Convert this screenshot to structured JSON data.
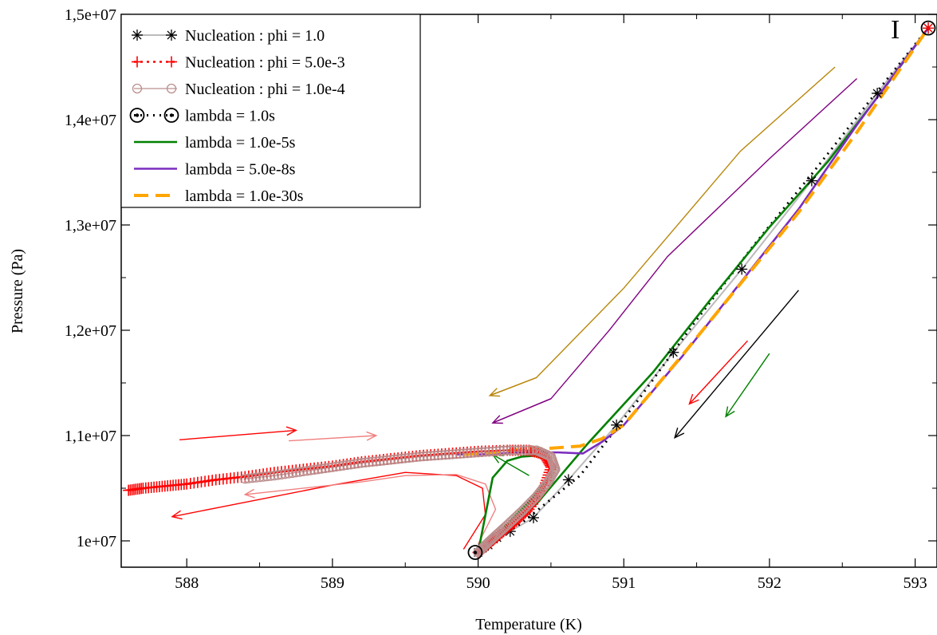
{
  "chart_data": {
    "type": "line",
    "title": "",
    "xlabel": "Temperature (K)",
    "ylabel": "Pressure (Pa)",
    "xlim": [
      587.55,
      593.15
    ],
    "ylim": [
      9750000,
      15000000
    ],
    "xticks": [
      588,
      589,
      590,
      591,
      592,
      593
    ],
    "xtick_labels": [
      "588",
      "589",
      "590",
      "591",
      "592",
      "593"
    ],
    "yticks": [
      10000000,
      11000000,
      12000000,
      13000000,
      14000000,
      15000000
    ],
    "ytick_labels": [
      "1e+07",
      "1,1e+07",
      "1,2e+07",
      "1,3e+07",
      "1,4e+07",
      "1,5e+07"
    ],
    "grid": false,
    "legend_position": "top-left",
    "point_annotation": {
      "label": "I",
      "x": 593.09,
      "y": 14870000
    },
    "series": [
      {
        "name": "Nucleation : phi = 1.0",
        "color": "#000000",
        "line_color": "#bbbbbb",
        "marker": "asterisk",
        "x": [
          590.0,
          590.03,
          590.07,
          590.13,
          590.22,
          590.38,
          590.62,
          590.95,
          591.34,
          591.81,
          592.29,
          592.74,
          593.09
        ],
        "y": [
          9890000,
          9930000,
          9960000,
          10030000,
          10090000,
          10220000,
          10580000,
          11100000,
          11790000,
          12580000,
          13420000,
          14250000,
          14870000
        ]
      },
      {
        "name": "Nucleation : phi = 5.0e-3",
        "color": "#ff0000",
        "marker": "plus",
        "x": [
          587.6,
          587.7,
          587.85,
          588.0,
          588.2,
          588.4,
          588.6,
          588.8,
          589.0,
          589.2,
          589.4,
          589.6,
          589.8,
          590.0,
          590.2,
          590.35,
          590.45,
          590.5,
          590.45,
          590.35,
          590.25,
          590.15,
          590.08,
          590.03,
          590.0
        ],
        "y": [
          10480000,
          10500000,
          10520000,
          10540000,
          10580000,
          10610000,
          10650000,
          10680000,
          10710000,
          10750000,
          10780000,
          10810000,
          10830000,
          10850000,
          10860000,
          10860000,
          10820000,
          10700000,
          10500000,
          10300000,
          10170000,
          10060000,
          9980000,
          9920000,
          9890000
        ]
      },
      {
        "name": "Nucleation : phi = 1.0e-4",
        "color": "#bc8f8f",
        "marker": "circle-open",
        "x": [
          588.4,
          588.6,
          588.8,
          589.0,
          589.2,
          589.4,
          589.6,
          589.8,
          590.0,
          590.2,
          590.4,
          590.5,
          590.53,
          590.48,
          590.4,
          590.3,
          590.2,
          590.12,
          590.05,
          590.0
        ],
        "y": [
          10590000,
          10620000,
          10660000,
          10700000,
          10740000,
          10770000,
          10800000,
          10820000,
          10840000,
          10860000,
          10860000,
          10800000,
          10680000,
          10560000,
          10420000,
          10280000,
          10150000,
          10050000,
          9960000,
          9890000
        ]
      },
      {
        "name": "lambda = 1.0s",
        "color": "#000000",
        "marker": "circle-dot",
        "x": [
          589.98,
          590.3,
          590.7,
          591.1,
          591.5,
          591.9,
          592.3,
          592.7,
          593.09
        ],
        "y": [
          9890000,
          10170000,
          10620000,
          11340000,
          12100000,
          12820000,
          13500000,
          14200000,
          14870000
        ]
      },
      {
        "name": "lambda = 1.0e-5s",
        "color": "#008000",
        "marker": "none",
        "x": [
          590.0,
          590.12,
          590.3,
          590.42,
          590.5,
          590.48,
          590.4,
          590.3,
          590.2,
          590.1,
          590.0,
          590.4,
          590.75,
          591.2,
          591.6,
          592.0,
          592.4,
          592.8,
          593.09
        ],
        "y": [
          9890000,
          10050000,
          10300000,
          10480000,
          10640000,
          10760000,
          10810000,
          10800000,
          10760000,
          10600000,
          9890000,
          10350000,
          10920000,
          11600000,
          12300000,
          12980000,
          13600000,
          14320000,
          14870000
        ]
      },
      {
        "name": "lambda = 5.0e-8s",
        "color": "#7b2cbf",
        "marker": "none",
        "x": [
          589.85,
          590.0,
          590.3,
          590.55,
          590.72,
          590.85,
          591.0,
          591.4,
          591.8,
          592.2,
          592.6,
          593.09
        ],
        "y": [
          10820000,
          10820000,
          10840000,
          10840000,
          10830000,
          10940000,
          11100000,
          11750000,
          12450000,
          13150000,
          13950000,
          14870000
        ]
      },
      {
        "name": "lambda = 1.0e-30s",
        "color": "#ffa500",
        "marker": "none",
        "dashed": true,
        "x": [
          589.9,
          590.1,
          590.3,
          590.5,
          590.7,
          590.85,
          591.0,
          591.4,
          591.8,
          592.2,
          592.6,
          593.09
        ],
        "y": [
          10820000,
          10840000,
          10870000,
          10880000,
          10900000,
          10970000,
          11100000,
          11760000,
          12440000,
          13120000,
          13880000,
          14870000
        ]
      }
    ],
    "arrows": [
      {
        "color": "#ff0000",
        "x": [
          587.95,
          588.75
        ],
        "y": [
          10960000,
          11050000
        ]
      },
      {
        "color": "#f08080",
        "x": [
          588.7,
          589.3
        ],
        "y": [
          10950000,
          11000000
        ]
      },
      {
        "color": "#ff0000",
        "x": [
          589.0,
          587.9
        ],
        "y": [
          10530000,
          10230000
        ]
      },
      {
        "color": "#f08080",
        "x": [
          589.2,
          588.4
        ],
        "y": [
          10560000,
          10440000
        ]
      },
      {
        "color": "#000000",
        "x": [
          592.2,
          591.35
        ],
        "y": [
          12380000,
          10980000
        ]
      },
      {
        "color": "#ff0000",
        "x": [
          591.85,
          591.45
        ],
        "y": [
          11900000,
          11300000
        ]
      },
      {
        "color": "#008000",
        "x": [
          592.0,
          591.7
        ],
        "y": [
          11780000,
          11180000
        ]
      },
      {
        "color": "#008000",
        "x": [
          590.35,
          590.1
        ],
        "y": [
          10620000,
          10820000
        ]
      }
    ],
    "guide_curves": [
      {
        "color": "#b8860b",
        "x": [
          592.45,
          591.8,
          591.0,
          590.4,
          590.08
        ],
        "y": [
          14500000,
          13700000,
          12400000,
          11550000,
          11380000
        ]
      },
      {
        "color": "#800080",
        "x": [
          592.6,
          592.0,
          591.3,
          590.9,
          590.5,
          590.1
        ],
        "y": [
          14390000,
          13630000,
          12700000,
          12000000,
          11350000,
          11120000
        ]
      },
      {
        "color": "#ff0000",
        "x": [
          589.9,
          590.05,
          590.03,
          589.85,
          589.5,
          589.0
        ],
        "y": [
          9920000,
          10250000,
          10500000,
          10620000,
          10650000,
          10530000
        ]
      },
      {
        "color": "#f08080",
        "x": [
          590.0,
          590.12,
          590.05,
          589.85,
          589.5,
          589.2
        ],
        "y": [
          9970000,
          10300000,
          10540000,
          10630000,
          10620000,
          10560000
        ]
      }
    ]
  }
}
